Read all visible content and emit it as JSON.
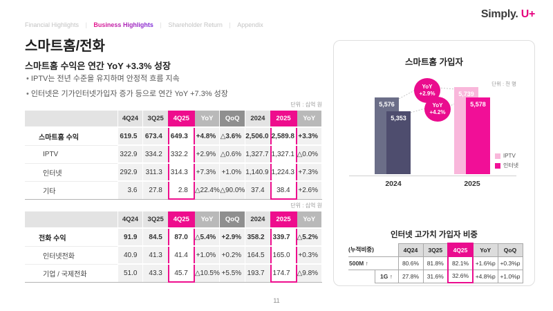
{
  "nav": {
    "separator": "|",
    "items": [
      {
        "label": "Financial Highlights",
        "active": false
      },
      {
        "label": "Business Highlights",
        "active": true
      },
      {
        "label": "Shareholder Return",
        "active": false
      },
      {
        "label": "Appendix",
        "active": false
      }
    ]
  },
  "logo": {
    "simply": "Simply.",
    "uplus": "U+"
  },
  "title": "스마트홈/전화",
  "subtitle": "스마트홈 수익은 연간 YoY +3.3% 성장",
  "bullets": [
    "IPTV는 전년 수준을 유지하며 안정적 흐름 지속",
    "인터넷은 기가인터넷가입자 증가 등으로 연간 YoY +7.3% 성장"
  ],
  "revenue_tables": [
    {
      "unit": "단위 : 십억 원",
      "headers": [
        "4Q24",
        "3Q25",
        "4Q25",
        "YoY",
        "QoQ",
        "2024",
        "2025",
        "YoY"
      ],
      "rows": [
        {
          "label": "스마트홈 수익",
          "total": true,
          "cells": [
            "619.5",
            "673.4",
            "649.3",
            "+4.8%",
            "△3.6%",
            "2,506.0",
            "2,589.8",
            "+3.3%"
          ]
        },
        {
          "label": "IPTV",
          "total": false,
          "cells": [
            "322.9",
            "334.2",
            "332.2",
            "+2.9%",
            "△0.6%",
            "1,327.7",
            "1,327.1",
            "△0.0%"
          ]
        },
        {
          "label": "인터넷",
          "total": false,
          "cells": [
            "292.9",
            "311.3",
            "314.3",
            "+7.3%",
            "+1.0%",
            "1,140.9",
            "1,224.3",
            "+7.3%"
          ]
        },
        {
          "label": "기타",
          "total": false,
          "cells": [
            "3.6",
            "27.8",
            "2.8",
            "△22.4%",
            "△90.0%",
            "37.4",
            "38.4",
            "+2.6%"
          ]
        }
      ]
    },
    {
      "unit": "단위 : 십억 원",
      "headers": [
        "4Q24",
        "3Q25",
        "4Q25",
        "YoY",
        "QoQ",
        "2024",
        "2025",
        "YoY"
      ],
      "rows": [
        {
          "label": "전화 수익",
          "total": true,
          "cells": [
            "91.9",
            "84.5",
            "87.0",
            "△5.4%",
            "+2.9%",
            "358.2",
            "339.7",
            "△5.2%"
          ]
        },
        {
          "label": "인터넷전화",
          "total": false,
          "cells": [
            "40.9",
            "41.3",
            "41.4",
            "+1.0%",
            "+0.2%",
            "164.5",
            "165.0",
            "+0.3%"
          ]
        },
        {
          "label": "기업 / 국제전화",
          "total": false,
          "cells": [
            "51.0",
            "43.3",
            "45.7",
            "△10.5%",
            "+5.5%",
            "193.7",
            "174.7",
            "△9.8%"
          ]
        }
      ]
    }
  ],
  "chart_data": {
    "type": "bar",
    "title": "스마트홈 가입자",
    "unit_label": "단위 : 천 명",
    "categories": [
      "2024",
      "2025"
    ],
    "series": [
      {
        "name": "IPTV",
        "values": [
          5576,
          5739
        ],
        "colors": [
          "#6b6e88",
          "#f9b7db"
        ]
      },
      {
        "name": "인터넷",
        "values": [
          5353,
          5578
        ],
        "colors": [
          "#4e4d6e",
          "#f10f97"
        ]
      }
    ],
    "annotations": [
      {
        "label": "YoY",
        "value": "+2.9%",
        "series": "IPTV"
      },
      {
        "label": "YoY",
        "value": "+4.2%",
        "series": "인터넷"
      }
    ],
    "legend": [
      {
        "label": "IPTV",
        "color": "#f9b7db"
      },
      {
        "label": "인터넷",
        "color": "#f10f97"
      }
    ],
    "legend_position": "right",
    "grid": false
  },
  "hv_table": {
    "title": "인터넷 고가치 가입자 비중",
    "corner_label": "(누적비중)",
    "headers": [
      "4Q24",
      "3Q25",
      "4Q25",
      "YoY",
      "QoQ"
    ],
    "rows": [
      {
        "label": "500M ↑",
        "cells": [
          "80.6%",
          "81.8%",
          "82.1%",
          "+1.6%p",
          "+0.3%p"
        ]
      },
      {
        "label": "1G ↑",
        "cells": [
          "27.8%",
          "31.6%",
          "32.6%",
          "+4.8%p",
          "+1.0%p"
        ]
      }
    ]
  },
  "colors": {
    "accent_magenta": "#ea0c8e",
    "header_magenta": "#ee0d8d",
    "yoy_header_gray": "#b9b9b9",
    "qoq_header_gray": "#8f8f8f",
    "bar_2024_iptv": "#6b6e88",
    "bar_2024_internet": "#4e4d6e",
    "bar_2025_iptv": "#f9b7db",
    "bar_2025_internet": "#f10f97"
  },
  "page": {
    "number": "11"
  }
}
